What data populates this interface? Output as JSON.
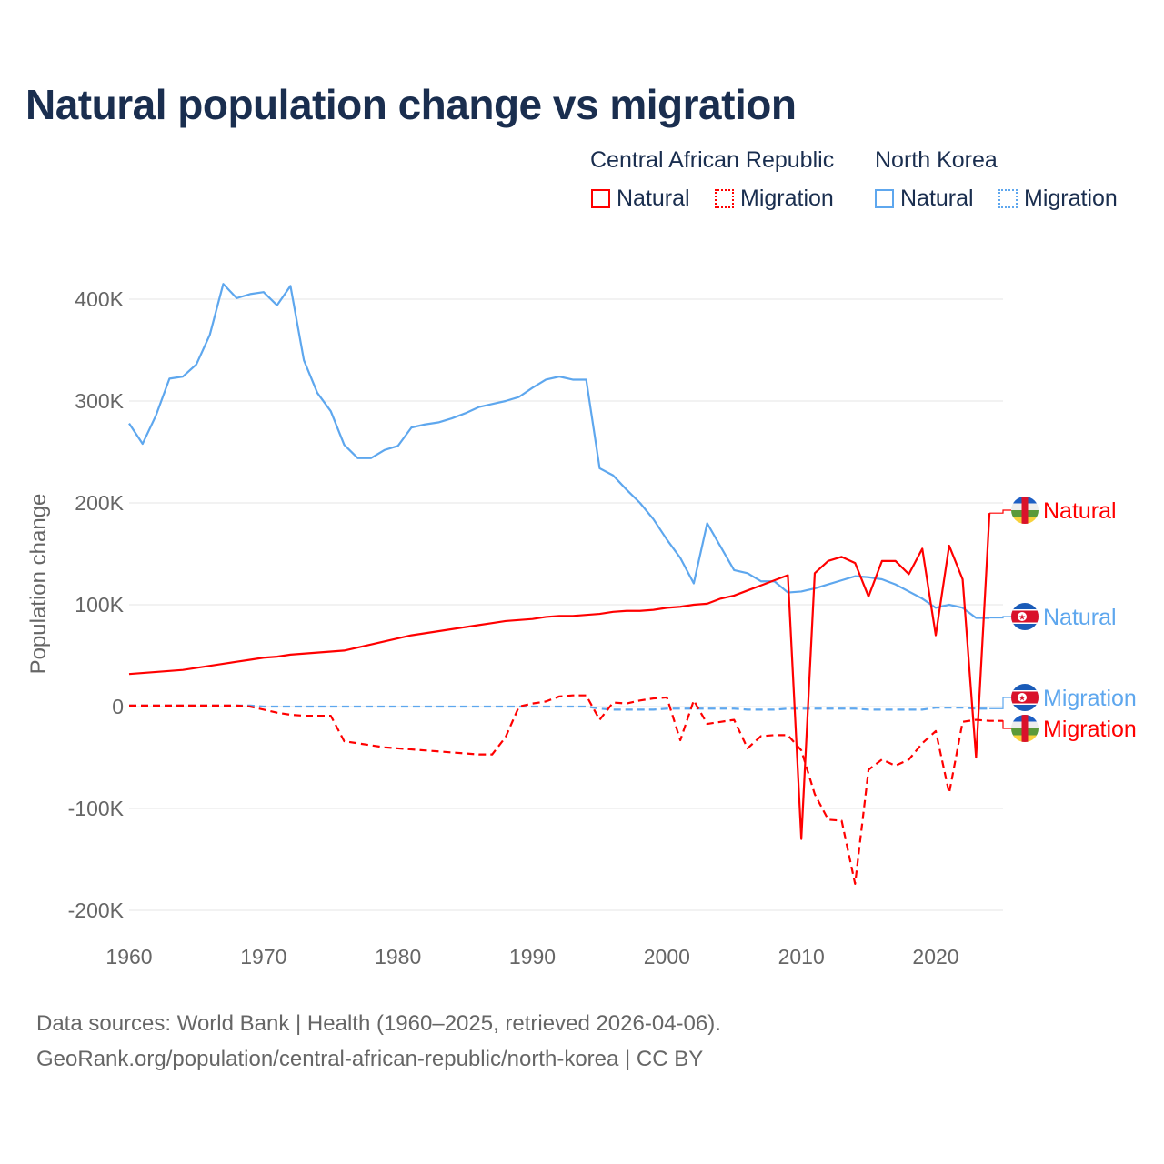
{
  "colors": {
    "car": "#ff0000",
    "nk": "#5ea7ee",
    "title": "#1a2e4f",
    "grid": "#e6e6e6",
    "axis_text": "#666666"
  },
  "legend": {
    "groups": [
      {
        "label": "Central African Republic",
        "items": [
          {
            "label": "Natural",
            "style": "solid"
          },
          {
            "label": "Migration",
            "style": "dotted"
          }
        ]
      },
      {
        "label": "North Korea",
        "items": [
          {
            "label": "Natural",
            "style": "solid"
          },
          {
            "label": "Migration",
            "style": "dotted"
          }
        ]
      }
    ]
  },
  "footer": {
    "line1": "Data sources: World Bank | Health (1960–2025, retrieved 2026-04-06).",
    "line2": "GeoRank.org/population/central-african-republic/north-korea | CC BY"
  },
  "chart_data": {
    "type": "line",
    "title": "Natural population change vs migration",
    "xlabel": "",
    "ylabel": "Population change",
    "xlim": [
      1960,
      2025
    ],
    "ylim": [
      -200000,
      400000
    ],
    "xticks": [
      1960,
      1970,
      1980,
      1990,
      2000,
      2010,
      2020
    ],
    "yticks": [
      {
        "v": -200000,
        "label": "-200K"
      },
      {
        "v": -100000,
        "label": "-100K"
      },
      {
        "v": 0,
        "label": "0"
      },
      {
        "v": 100000,
        "label": "100K"
      },
      {
        "v": 200000,
        "label": "200K"
      },
      {
        "v": 300000,
        "label": "300K"
      },
      {
        "v": 400000,
        "label": "400K"
      }
    ],
    "grid": true,
    "x_start": 1960,
    "series": [
      {
        "name": "North Korea Natural",
        "end_label": "Natural",
        "country": "nk",
        "dash": "solid",
        "values": [
          278,
          258,
          286,
          322,
          324,
          336,
          365,
          415,
          401,
          405,
          407,
          394,
          413,
          340,
          308,
          290,
          257,
          244,
          244,
          252,
          256,
          274,
          277,
          279,
          283,
          288,
          294,
          297,
          300,
          304,
          313,
          321,
          324,
          321,
          321,
          234,
          227,
          213,
          200,
          184,
          164,
          146,
          121,
          180,
          157,
          134,
          131,
          123,
          123,
          112,
          113,
          116,
          120,
          124,
          128,
          127,
          125,
          120,
          113,
          106,
          97,
          100,
          97,
          87,
          87
        ]
      },
      {
        "name": "Central African Republic Natural",
        "end_label": "Natural",
        "country": "car",
        "dash": "solid",
        "values": [
          32,
          33,
          34,
          35,
          36,
          38,
          40,
          42,
          44,
          46,
          48,
          49,
          51,
          52,
          53,
          54,
          55,
          58,
          61,
          64,
          67,
          70,
          72,
          74,
          76,
          78,
          80,
          82,
          84,
          85,
          86,
          88,
          89,
          89,
          90,
          91,
          93,
          94,
          94,
          95,
          97,
          98,
          100,
          101,
          106,
          109,
          114,
          119,
          124,
          129,
          -130,
          131,
          143,
          147,
          141,
          108,
          143,
          143,
          130,
          155,
          70,
          158,
          125,
          -50,
          190
        ]
      },
      {
        "name": "North Korea Migration",
        "end_label": "Migration",
        "country": "nk",
        "dash": "dashed",
        "values": [
          1,
          1,
          1,
          1,
          1,
          1,
          1,
          1,
          1,
          1,
          0,
          0,
          0,
          0,
          0,
          0,
          0,
          0,
          0,
          0,
          0,
          0,
          0,
          0,
          0,
          0,
          0,
          0,
          0,
          0,
          0,
          0,
          0,
          0,
          0,
          -2,
          -3,
          -3,
          -3,
          -3,
          -2,
          -2,
          -2,
          -2,
          -2,
          -2,
          -3,
          -3,
          -3,
          -2,
          -2,
          -2,
          -2,
          -2,
          -2,
          -3,
          -3,
          -3,
          -3,
          -3,
          -1,
          -1,
          -1,
          -2,
          -2
        ]
      },
      {
        "name": "Central African Republic Migration",
        "end_label": "Migration",
        "country": "car",
        "dash": "dashed",
        "values": [
          1,
          1,
          1,
          1,
          1,
          1,
          1,
          1,
          1,
          0,
          -3,
          -6,
          -8,
          -9,
          -9,
          -9,
          -34,
          -36,
          -38,
          -40,
          -41,
          -42,
          -43,
          -44,
          -45,
          -46,
          -47,
          -47,
          -30,
          0,
          3,
          5,
          10,
          11,
          11,
          -13,
          4,
          3,
          6,
          8,
          9,
          -33,
          6,
          -17,
          -15,
          -13,
          -41,
          -29,
          -28,
          -28,
          -43,
          -86,
          -111,
          -112,
          -174,
          -62,
          -52,
          -58,
          -52,
          -36,
          -24,
          -85,
          -15,
          -13,
          -14,
          -14
        ]
      }
    ],
    "value_unit": "thousands"
  }
}
